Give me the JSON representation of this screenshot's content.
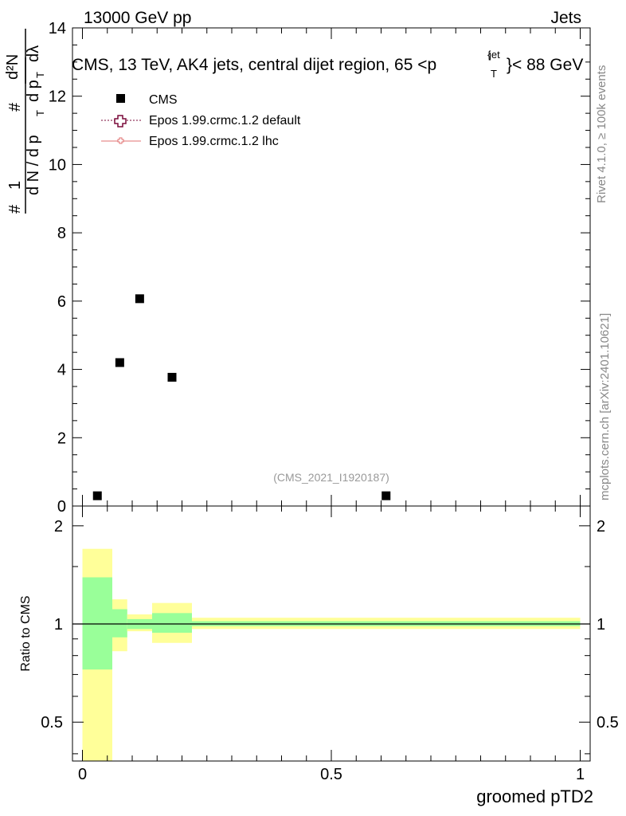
{
  "header": {
    "left": "13000 GeV pp",
    "right": "Jets"
  },
  "plot_title": {
    "prefix": "CMS, 13 TeV, AK4 jets, central dijet region, 65 <p",
    "sup": "jet",
    "sub": "T",
    "suffix": "}< 88 GeV",
    "brace": "{"
  },
  "side_labels": {
    "rivet": "Rivet 4.1.0, ≥ 100k events",
    "mcplots": "mcplots.cern.ch [arXiv:2401.10621]"
  },
  "analysis_id": "(CMS_2021_I1920187)",
  "y_axis_label": {
    "hash": "#",
    "one": "1",
    "dN": "d N / d p",
    "T": "T",
    "d2N": "d²N",
    "dpT_dl": "d p",
    "lambda": "dλ"
  },
  "legend": [
    {
      "label": "CMS",
      "color": "#000000",
      "marker": "square"
    },
    {
      "label": "Epos 1.99.crmc.1.2 default",
      "color": "#7a0a3a",
      "marker": "open-cross"
    },
    {
      "label": "Epos 1.99.crmc.1.2 lhc",
      "color": "#e07070",
      "marker": "small-cross"
    }
  ],
  "ratio_label": "Ratio to CMS",
  "x_axis_label": "groomed pTD2",
  "colors": {
    "green_band": "#99ff99",
    "yellow_band": "#ffff99",
    "data": "#000000"
  },
  "chart_data": [
    {
      "type": "scatter",
      "title": "CMS, 13 TeV, AK4 jets, central dijet region, 65 < pT(jet) < 88 GeV",
      "xlabel": "groomed pTD2",
      "ylabel": "1/(dN/dpT) d²N/(dpT dλ)",
      "xlim": [
        -0.02,
        1.02
      ],
      "ylim": [
        0,
        14
      ],
      "yticks": [
        0,
        2,
        4,
        6,
        8,
        10,
        12,
        14
      ],
      "tick_labels": [
        "0",
        "2",
        "4",
        "6",
        "8",
        "10",
        "12",
        "14"
      ],
      "series": [
        {
          "name": "CMS",
          "x": [
            0.03,
            0.075,
            0.115,
            0.18,
            0.61
          ],
          "y": [
            0.3,
            4.2,
            6.07,
            3.77,
            0.3
          ]
        }
      ]
    },
    {
      "type": "area",
      "title": "Ratio to CMS",
      "ylabel": "Ratio to CMS",
      "xlabel": "groomed pTD2",
      "xlim": [
        -0.02,
        1.02
      ],
      "ylim": [
        0.38,
        2.3
      ],
      "yscale": "log",
      "yticks": [
        0.5,
        1,
        2
      ],
      "tick_labels": [
        "0.5",
        "1",
        "2"
      ],
      "xticks": [
        0,
        0.5,
        1
      ],
      "xtick_labels": [
        "0",
        "0.5",
        "1"
      ],
      "reference": 1,
      "bands": [
        {
          "x0": 0.0,
          "x1": 0.06,
          "stat_lo": 0.725,
          "stat_hi": 1.39,
          "tot_lo": 0.38,
          "tot_hi": 1.7
        },
        {
          "x0": 0.06,
          "x1": 0.09,
          "stat_lo": 0.91,
          "stat_hi": 1.11,
          "tot_lo": 0.825,
          "tot_hi": 1.19
        },
        {
          "x0": 0.09,
          "x1": 0.14,
          "stat_lo": 0.965,
          "stat_hi": 1.035,
          "tot_lo": 0.95,
          "tot_hi": 1.07
        },
        {
          "x0": 0.14,
          "x1": 0.22,
          "stat_lo": 0.94,
          "stat_hi": 1.08,
          "tot_lo": 0.875,
          "tot_hi": 1.16
        },
        {
          "x0": 0.22,
          "x1": 1.0,
          "stat_lo": 0.985,
          "stat_hi": 1.02,
          "tot_lo": 0.965,
          "tot_hi": 1.045
        }
      ]
    }
  ]
}
